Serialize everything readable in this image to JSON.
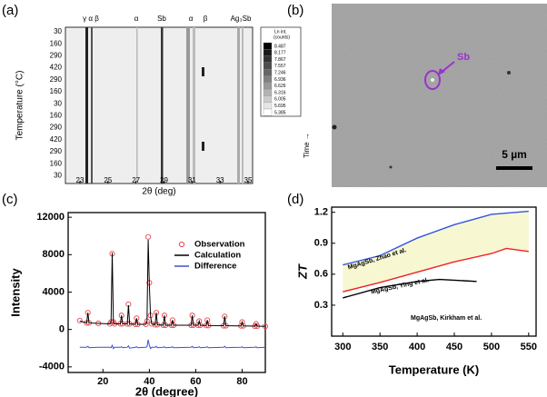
{
  "panels": {
    "a": "(a)",
    "b": "(b)",
    "c": "(c)",
    "d": "(d)"
  },
  "panel_a": {
    "ylabel": "Temperature (°C)",
    "xlabel": "2θ (deg)",
    "yticks": [
      "30",
      "160",
      "290",
      "420",
      "290",
      "160",
      "30",
      "160",
      "290",
      "420",
      "290",
      "160",
      "30"
    ],
    "xticks": [
      23,
      25,
      27,
      29,
      31,
      33,
      35
    ],
    "peak_labels": [
      "γ α β",
      "α",
      "Sb",
      "α",
      "β",
      "Ag₃Sb"
    ],
    "colorbar_title": [
      "Ln int.",
      "(counts)"
    ],
    "colorbar_values": [
      "8.487",
      "8.177",
      "7.867",
      "7.557",
      "7.246",
      "6.936",
      "6.626",
      "6.316",
      "6.005",
      "5.695",
      "5.385"
    ],
    "time_label": "Time →"
  },
  "panel_b": {
    "marker_label": "Sb",
    "scale_bar": "5 µm"
  },
  "chart_data": [
    {
      "type": "line",
      "xlabel": "2θ (degree)",
      "ylabel": "Intensity",
      "xlim": [
        5,
        90
      ],
      "xticks": [
        20,
        40,
        60,
        80
      ],
      "ylim": [
        -4600,
        12500
      ],
      "yticks": [
        -4000,
        0,
        4000,
        8000,
        12000
      ],
      "legend": "upper right",
      "x": [
        10,
        13,
        13.5,
        14,
        18,
        23,
        23.5,
        24,
        24.5,
        25,
        27.5,
        28,
        28.5,
        30.5,
        31,
        31.5,
        34,
        34.5,
        35,
        38.5,
        39,
        39.5,
        40,
        40.5,
        41,
        42.5,
        43,
        43.5,
        46,
        46.5,
        47,
        49.5,
        50,
        50.5,
        58,
        58.5,
        59,
        61,
        61.5,
        62,
        64.5,
        65,
        65.5,
        72,
        72.5,
        73,
        79.5,
        80,
        80.5,
        85.5,
        86,
        86.5,
        90
      ],
      "series": [
        {
          "name": "Observation",
          "color": "#e8474f",
          "marker": "open-circle",
          "values": [
            950,
            700,
            1800,
            700,
            650,
            600,
            800,
            8100,
            800,
            600,
            600,
            1500,
            600,
            600,
            2700,
            600,
            550,
            1200,
            550,
            550,
            900,
            9900,
            5000,
            1500,
            600,
            500,
            1800,
            500,
            450,
            1500,
            450,
            450,
            1000,
            450,
            450,
            1500,
            450,
            450,
            900,
            450,
            420,
            1000,
            420,
            400,
            1400,
            400,
            380,
            800,
            380,
            350,
            600,
            350,
            330
          ]
        },
        {
          "name": "Calculation",
          "color": "#000000",
          "marker": "line",
          "values": [
            900,
            700,
            1800,
            700,
            650,
            600,
            800,
            8200,
            800,
            600,
            600,
            1500,
            600,
            600,
            2600,
            600,
            550,
            1200,
            550,
            550,
            900,
            9600,
            4800,
            1500,
            600,
            500,
            1800,
            500,
            450,
            1500,
            450,
            450,
            1000,
            450,
            450,
            1500,
            450,
            450,
            900,
            450,
            420,
            1000,
            420,
            400,
            1400,
            400,
            380,
            800,
            380,
            350,
            600,
            350,
            330
          ]
        },
        {
          "name": "Difference",
          "color": "#3b4fd6",
          "marker": "line",
          "values": [
            -1900,
            -1900,
            -1800,
            -1950,
            -1900,
            -1900,
            -1950,
            -1700,
            -2050,
            -1900,
            -1900,
            -1850,
            -1950,
            -1900,
            -1750,
            -2000,
            -1900,
            -1850,
            -1950,
            -1900,
            -1850,
            -1100,
            -1700,
            -2050,
            -1900,
            -1900,
            -1800,
            -1950,
            -1900,
            -1850,
            -1950,
            -1900,
            -1850,
            -1950,
            -1900,
            -1800,
            -1950,
            -1900,
            -1850,
            -1950,
            -1900,
            -1850,
            -1950,
            -1900,
            -1800,
            -1950,
            -1900,
            -1850,
            -1950,
            -1900,
            -1850,
            -1950,
            -1900
          ]
        }
      ]
    },
    {
      "type": "line",
      "xlabel": "Temperature (K)",
      "ylabel": "ZT",
      "xlim": [
        285,
        560
      ],
      "xticks": [
        300,
        350,
        400,
        450,
        500,
        550
      ],
      "ylim": [
        0,
        1.25
      ],
      "yticks": [
        0.3,
        0.6,
        0.9,
        1.2
      ],
      "fill_between": [
        0,
        1
      ],
      "fill_color": "#f7f7d2",
      "series": [
        {
          "name": "MgAgSb, Zhao et al.",
          "color": "#3355dd",
          "x": [
            300,
            350,
            400,
            450,
            500,
            550
          ],
          "values": [
            0.69,
            0.78,
            0.95,
            1.08,
            1.18,
            1.21
          ]
        },
        {
          "name": "MgAgSb, Ying et al.",
          "color": "#ee2222",
          "x": [
            300,
            350,
            400,
            450,
            500,
            520,
            550
          ],
          "values": [
            0.43,
            0.52,
            0.62,
            0.72,
            0.8,
            0.85,
            0.82
          ]
        },
        {
          "name": "MgAgSb, Kirkham et al.",
          "color": "#000000",
          "x": [
            300,
            350,
            400,
            430,
            480
          ],
          "values": [
            0.37,
            0.47,
            0.53,
            0.55,
            0.53
          ]
        }
      ]
    }
  ]
}
